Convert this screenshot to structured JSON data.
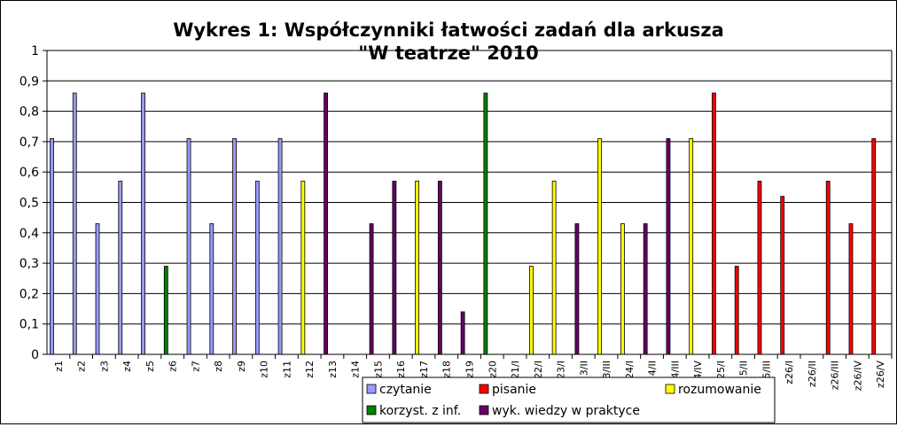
{
  "chart_data": {
    "type": "bar",
    "title": "Wykres 1: Współczynniki łatwości zadań dla arkusza",
    "title_line2": "\"W teatrze\" 2010",
    "xlabel": "",
    "ylabel": "",
    "ylim": [
      0,
      1
    ],
    "ytick_labels": [
      "0",
      "0,1",
      "0,2",
      "0,3",
      "0,4",
      "0,5",
      "0,6",
      "0,7",
      "0,8",
      "0,9",
      "1"
    ],
    "grid": "horizontal",
    "legend_position": "bottom-right",
    "categories": [
      "z1",
      "z2",
      "z3",
      "z4",
      "z5",
      "z6",
      "z7",
      "z8",
      "z9",
      "z10",
      "z11",
      "z12",
      "z13",
      "z14",
      "z15",
      "z16",
      "z17",
      "z18",
      "z19",
      "z20",
      "z21/I",
      "z22/I",
      "z23/I",
      "z23/II",
      "z23/III",
      "z24/I",
      "z24/II",
      "z24/III",
      "z24/IV",
      "z25/I",
      "z25/II",
      "z25/III",
      "z26/I",
      "z26/II",
      "z26/III",
      "z26/IV",
      "z26/V"
    ],
    "series": [
      {
        "name": "czytanie",
        "color": "#9999ff",
        "values": [
          0.71,
          0.86,
          0.43,
          0.57,
          0.86,
          null,
          0.71,
          0.43,
          0.71,
          0.57,
          0.71,
          null,
          null,
          null,
          null,
          null,
          null,
          null,
          null,
          null,
          null,
          null,
          null,
          null,
          null,
          null,
          null,
          null,
          null,
          null,
          null,
          null,
          null,
          null,
          null,
          null,
          null
        ]
      },
      {
        "name": "pisanie",
        "color": "#ff0000",
        "values": [
          null,
          null,
          null,
          null,
          null,
          null,
          null,
          null,
          null,
          null,
          null,
          null,
          null,
          null,
          null,
          null,
          null,
          null,
          null,
          null,
          null,
          null,
          null,
          null,
          null,
          null,
          null,
          null,
          null,
          0.86,
          0.29,
          0.57,
          0.52,
          null,
          0.57,
          0.43,
          0.71
        ]
      },
      {
        "name": "rozumowanie",
        "color": "#ffff00",
        "values": [
          null,
          null,
          null,
          null,
          null,
          null,
          null,
          null,
          null,
          null,
          null,
          0.57,
          null,
          null,
          null,
          null,
          0.57,
          null,
          null,
          null,
          null,
          0.29,
          0.57,
          null,
          0.71,
          0.43,
          null,
          null,
          0.71,
          null,
          null,
          null,
          null,
          null,
          null,
          null,
          null
        ]
      },
      {
        "name": "korzyst. z inf.",
        "color": "#008000",
        "values": [
          null,
          null,
          null,
          null,
          null,
          0.29,
          null,
          null,
          null,
          null,
          null,
          null,
          null,
          null,
          null,
          null,
          null,
          null,
          null,
          0.86,
          null,
          null,
          null,
          null,
          null,
          null,
          null,
          null,
          null,
          null,
          null,
          null,
          null,
          null,
          null,
          null,
          null
        ]
      },
      {
        "name": "wyk. wiedzy w praktyce",
        "color": "#660066",
        "values": [
          null,
          null,
          null,
          null,
          null,
          null,
          null,
          null,
          null,
          null,
          null,
          null,
          0.86,
          null,
          0.43,
          0.57,
          null,
          0.57,
          0.14,
          null,
          null,
          null,
          null,
          0.43,
          null,
          null,
          0.43,
          0.71,
          null,
          null,
          null,
          null,
          null,
          null,
          null,
          null,
          null
        ]
      }
    ]
  }
}
